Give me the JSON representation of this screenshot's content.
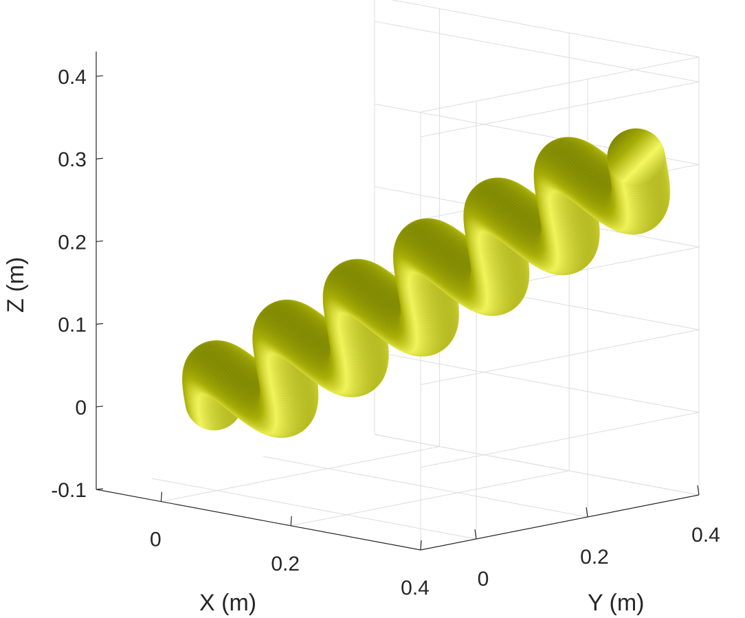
{
  "chart_data": {
    "type": "3d-surface",
    "title": "",
    "xlabel": "X (m)",
    "ylabel": "Y (m)",
    "zlabel": "Z (m)",
    "xlim": [
      -0.1,
      0.4
    ],
    "ylim": [
      -0.1,
      0.4
    ],
    "zlim": [
      -0.1,
      0.43
    ],
    "x_ticks": [
      0,
      0.2,
      0.4
    ],
    "x_tick_labels": [
      "0",
      "0.2",
      "0.4"
    ],
    "y_ticks": [
      0,
      0.2,
      0.4
    ],
    "y_tick_labels": [
      "0",
      "0.2",
      "0.4"
    ],
    "z_ticks": [
      -0.1,
      0,
      0.1,
      0.2,
      0.3,
      0.4
    ],
    "z_tick_labels": [
      "-0.1",
      "0",
      "0.1",
      "0.2",
      "0.3",
      "0.4"
    ],
    "grid": true,
    "surface_color": "#c8cc10",
    "series": [
      {
        "shape": "helical-tube",
        "start": [
          0,
          0,
          0
        ],
        "end": [
          0.35,
          0.35,
          0.3
        ],
        "turns": 6,
        "helix_radius": 0.04,
        "tube_radius": 0.035
      }
    ]
  }
}
